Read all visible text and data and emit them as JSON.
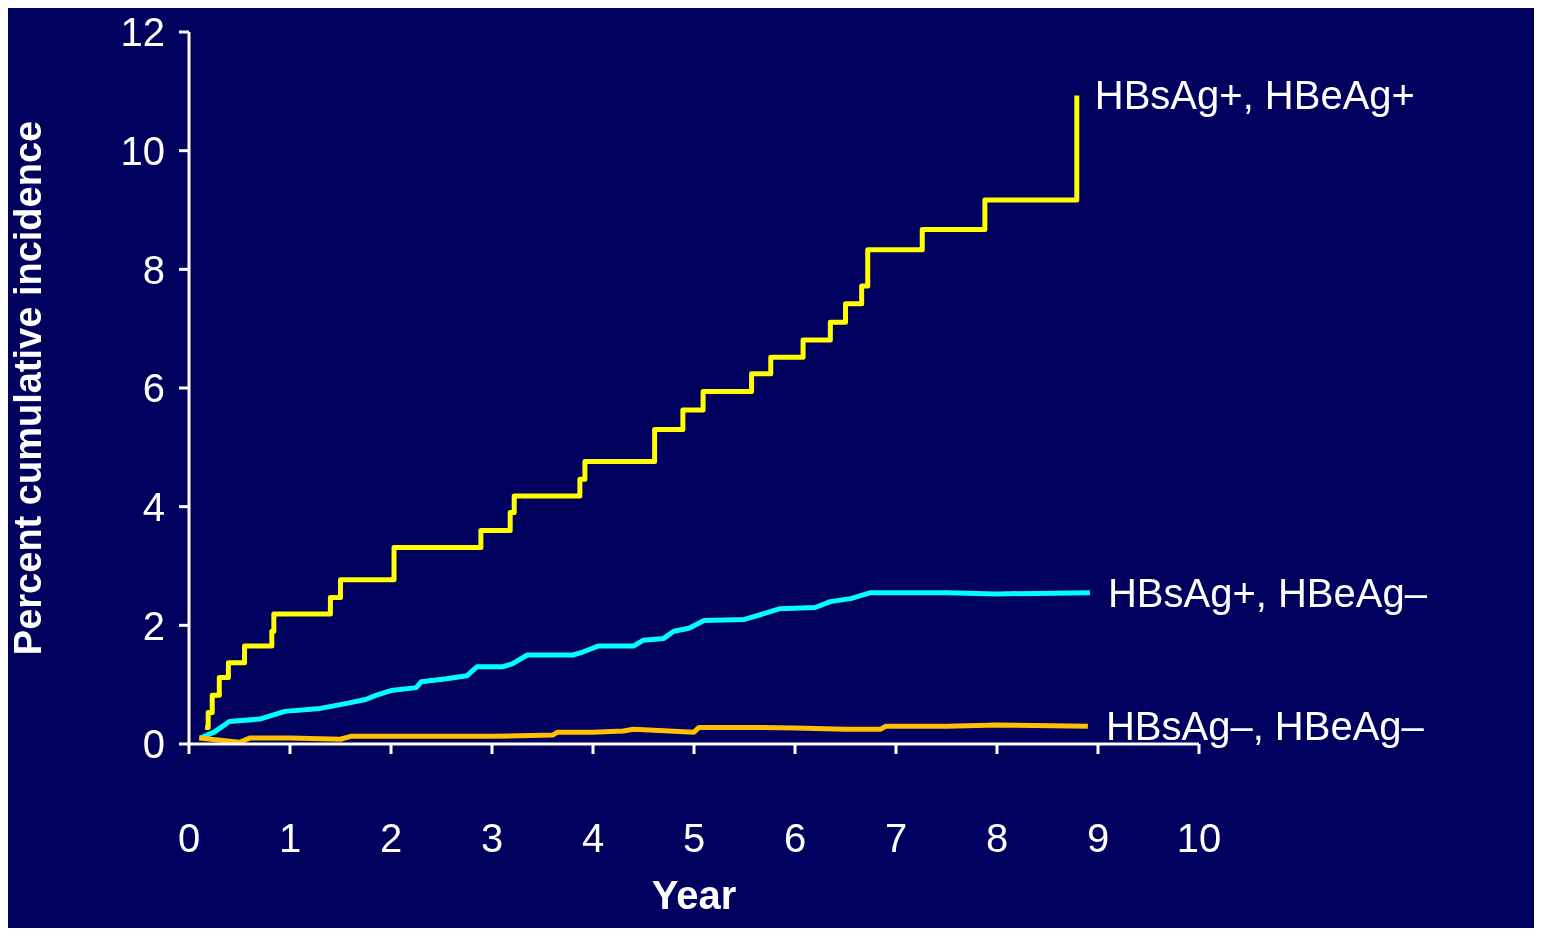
{
  "chart_data": {
    "type": "line",
    "xlabel": "Year",
    "ylabel": "Percent cumulative incidence",
    "xlim": [
      0,
      10
    ],
    "ylim": [
      0,
      12
    ],
    "xticks": [
      0,
      1,
      2,
      3,
      4,
      5,
      6,
      7,
      8,
      9,
      10
    ],
    "yticks": [
      0,
      2,
      4,
      6,
      8,
      10,
      12
    ],
    "marker": "none",
    "line_style": "solid",
    "series": [
      {
        "name": "HBsAg+, HBeAg+",
        "type": "step",
        "color": "#ffff00",
        "x": [
          0.16,
          0.19,
          0.23,
          0.3,
          0.39,
          0.55,
          0.82,
          0.84,
          1.4,
          1.5,
          2.03,
          2.89,
          3.18,
          3.22,
          3.87,
          3.92,
          4.61,
          4.89,
          5.09,
          5.57,
          5.76,
          6.08,
          6.35,
          6.5,
          6.66,
          6.72,
          7.26,
          7.88,
          8.79
        ],
        "values": [
          0.28,
          0.53,
          0.82,
          1.12,
          1.37,
          1.65,
          1.9,
          2.19,
          2.47,
          2.77,
          3.31,
          3.6,
          3.9,
          4.18,
          4.46,
          4.76,
          5.3,
          5.63,
          5.94,
          6.24,
          6.52,
          6.81,
          7.11,
          7.42,
          7.72,
          8.33,
          8.67,
          9.17,
          10.93
        ]
      },
      {
        "name": "HBsAg+, HBeAg–",
        "type": "line",
        "color": "#00ffff",
        "x": [
          0.11,
          0.25,
          0.4,
          0.7,
          0.95,
          1.3,
          1.55,
          1.75,
          1.85,
          2.0,
          2.25,
          2.3,
          2.55,
          2.75,
          2.85,
          3.1,
          3.2,
          3.35,
          3.8,
          3.9,
          4.05,
          4.4,
          4.5,
          4.7,
          4.8,
          4.95,
          5.1,
          5.5,
          5.7,
          5.85,
          6.2,
          6.35,
          6.55,
          6.75,
          7.5,
          8.0,
          8.92
        ],
        "values": [
          0.1,
          0.2,
          0.38,
          0.42,
          0.55,
          0.6,
          0.68,
          0.75,
          0.82,
          0.9,
          0.95,
          1.05,
          1.1,
          1.15,
          1.3,
          1.3,
          1.35,
          1.5,
          1.5,
          1.55,
          1.65,
          1.65,
          1.75,
          1.78,
          1.9,
          1.95,
          2.08,
          2.1,
          2.2,
          2.28,
          2.3,
          2.4,
          2.45,
          2.55,
          2.55,
          2.53,
          2.55
        ]
      },
      {
        "name": "HBsAg–, HBeAg–",
        "type": "line",
        "color": "#ffc000",
        "x": [
          0.1,
          0.5,
          0.6,
          1.0,
          1.5,
          1.6,
          2.0,
          3.0,
          3.6,
          3.65,
          4.0,
          4.3,
          4.4,
          5.0,
          5.05,
          5.5,
          6.0,
          6.5,
          6.85,
          6.9,
          7.5,
          8.0,
          8.9
        ],
        "values": [
          0.1,
          0.03,
          0.1,
          0.1,
          0.08,
          0.13,
          0.13,
          0.13,
          0.15,
          0.2,
          0.2,
          0.22,
          0.25,
          0.2,
          0.28,
          0.28,
          0.27,
          0.25,
          0.25,
          0.3,
          0.3,
          0.32,
          0.3
        ]
      }
    ]
  }
}
